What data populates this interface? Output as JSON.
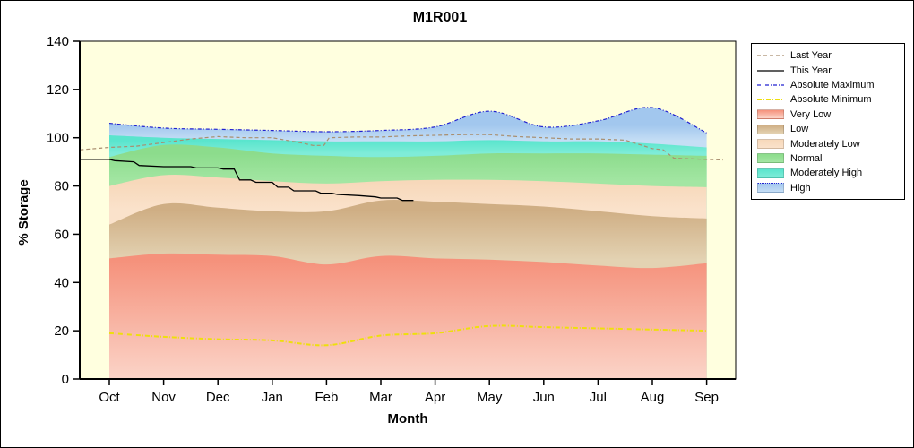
{
  "chart_data": {
    "type": "area",
    "title": "M1R001",
    "xlabel": "Month",
    "ylabel": "% Storage",
    "ylim": [
      0,
      140
    ],
    "yticks": [
      0,
      20,
      40,
      60,
      80,
      100,
      120,
      140
    ],
    "months": [
      "Oct",
      "Nov",
      "Dec",
      "Jan",
      "Feb",
      "Mar",
      "Apr",
      "May",
      "Jun",
      "Jul",
      "Aug",
      "Sep"
    ],
    "plot_background": "#FFFFDF",
    "bands": [
      {
        "name": "Very Low",
        "top": [
          50,
          52,
          51.5,
          51,
          47.5,
          51,
          50,
          49.5,
          48.5,
          47,
          46,
          48
        ],
        "color_top": "#F5917B",
        "color_bottom": "#FBD4C8"
      },
      {
        "name": "Low",
        "top": [
          64,
          72.5,
          71,
          69.5,
          69.5,
          74,
          73.5,
          72.5,
          71.5,
          69.5,
          67.5,
          66.5
        ],
        "color_top": "#CFAE84",
        "color_bottom": "#E3D2B2"
      },
      {
        "name": "Moderately Low",
        "top": [
          80,
          84.5,
          83.5,
          82,
          81,
          82,
          82.5,
          82.5,
          82,
          81,
          80,
          79.5
        ],
        "color_top": "#F7D8BA",
        "color_bottom": "#FAE2CB"
      },
      {
        "name": "Normal",
        "top": [
          92,
          97,
          96,
          93.5,
          92.5,
          92,
          92.5,
          93.5,
          93.5,
          93.5,
          93,
          92.5
        ],
        "color_top": "#8CDC8C",
        "color_bottom": "#A3E6A3"
      },
      {
        "name": "Moderately High",
        "top": [
          101,
          100,
          99.5,
          99,
          98.5,
          98.5,
          98.5,
          99,
          98.5,
          98.5,
          97.5,
          96
        ],
        "color_top": "#5AE5CD",
        "color_bottom": "#7FECD8"
      },
      {
        "name": "High",
        "top": [
          106,
          104,
          103.5,
          103,
          102.5,
          103,
          104.5,
          111,
          104.5,
          107,
          112.5,
          102
        ],
        "color_top": "#A2C7EE",
        "color_bottom": "#C5DEF5"
      }
    ],
    "lines": [
      {
        "name": "Absolute Maximum",
        "color": "#2121D0",
        "width": 1.2,
        "dash": "4 2 1 2",
        "smooth": true,
        "values": [
          106,
          104,
          103.5,
          103,
          102.5,
          103,
          104.5,
          111,
          104.5,
          107,
          112.5,
          102
        ]
      },
      {
        "name": "Absolute Minimum",
        "color": "#EEDF0C",
        "width": 2,
        "dash": "5 2 1 2",
        "smooth": true,
        "values": [
          19,
          17.5,
          16.5,
          16,
          14,
          18,
          19,
          22,
          21.5,
          21,
          20.5,
          20
        ]
      },
      {
        "name": "Last Year",
        "color": "#A98E6F",
        "width": 1.2,
        "dash": "4 3",
        "smooth": false,
        "points": [
          [
            -0.54,
            95
          ],
          [
            0,
            96
          ],
          [
            0.5,
            96.5
          ],
          [
            1,
            98
          ],
          [
            1.5,
            99.5
          ],
          [
            2,
            100.5
          ],
          [
            2.5,
            100
          ],
          [
            3,
            100
          ],
          [
            3.5,
            98
          ],
          [
            3.75,
            96.8
          ],
          [
            3.95,
            96.8
          ],
          [
            4.05,
            100
          ],
          [
            4.5,
            100.3
          ],
          [
            5,
            100.3
          ],
          [
            5.5,
            100.8
          ],
          [
            6,
            101
          ],
          [
            6.5,
            101.3
          ],
          [
            7,
            101.3
          ],
          [
            7.5,
            100.5
          ],
          [
            8,
            100
          ],
          [
            8.5,
            99.5
          ],
          [
            9,
            99.5
          ],
          [
            9.5,
            99
          ],
          [
            10,
            95.5
          ],
          [
            10.2,
            95
          ],
          [
            10.4,
            91.5
          ],
          [
            11,
            91
          ],
          [
            11.3,
            90.8
          ]
        ]
      },
      {
        "name": "This Year",
        "color": "#000000",
        "width": 1.3,
        "dash": "",
        "smooth": false,
        "points": [
          [
            -0.54,
            91
          ],
          [
            0,
            91
          ],
          [
            0.1,
            90.5
          ],
          [
            0.45,
            90
          ],
          [
            0.55,
            88.5
          ],
          [
            1,
            88
          ],
          [
            1.5,
            88
          ],
          [
            1.6,
            87.5
          ],
          [
            2,
            87.5
          ],
          [
            2.1,
            87
          ],
          [
            2.3,
            87
          ],
          [
            2.4,
            82.5
          ],
          [
            2.6,
            82.5
          ],
          [
            2.7,
            81.5
          ],
          [
            3,
            81.5
          ],
          [
            3.1,
            79.5
          ],
          [
            3.3,
            79.5
          ],
          [
            3.4,
            78
          ],
          [
            3.8,
            78
          ],
          [
            3.9,
            77
          ],
          [
            4.1,
            77
          ],
          [
            4.2,
            76.5
          ],
          [
            4.6,
            76
          ],
          [
            4.9,
            75.5
          ],
          [
            5,
            75
          ],
          [
            5.3,
            75
          ],
          [
            5.4,
            74
          ],
          [
            5.6,
            74
          ]
        ]
      }
    ],
    "legend": [
      {
        "label": "Last Year",
        "swatch": "line",
        "color": "#A98E6F",
        "dash": "4 3",
        "width": 1.2
      },
      {
        "label": "This Year",
        "swatch": "line",
        "color": "#000000",
        "dash": "",
        "width": 1.3
      },
      {
        "label": "Absolute Maximum",
        "swatch": "line",
        "color": "#2121D0",
        "dash": "4 2 1 2",
        "width": 1.2
      },
      {
        "label": "Absolute Minimum",
        "swatch": "line",
        "color": "#EEDF0C",
        "dash": "5 2 1 2",
        "width": 2
      },
      {
        "label": "Very Low",
        "swatch": "fill",
        "color_top": "#F5917B",
        "color_bottom": "#FBD4C8"
      },
      {
        "label": "Low",
        "swatch": "fill",
        "color_top": "#CFAE84",
        "color_bottom": "#E3D2B2"
      },
      {
        "label": "Moderately Low",
        "swatch": "fill",
        "color_top": "#F7D8BA",
        "color_bottom": "#FAE2CB"
      },
      {
        "label": "Normal",
        "swatch": "fill",
        "color_top": "#8CDC8C",
        "color_bottom": "#A3E6A3"
      },
      {
        "label": "Moderately High",
        "swatch": "fill",
        "color_top": "#5AE5CD",
        "color_bottom": "#7FECD8"
      },
      {
        "label": "High",
        "swatch": "fill",
        "color_top": "#A2C7EE",
        "color_bottom": "#C5DEF5",
        "topline": "#2121D0"
      }
    ]
  }
}
